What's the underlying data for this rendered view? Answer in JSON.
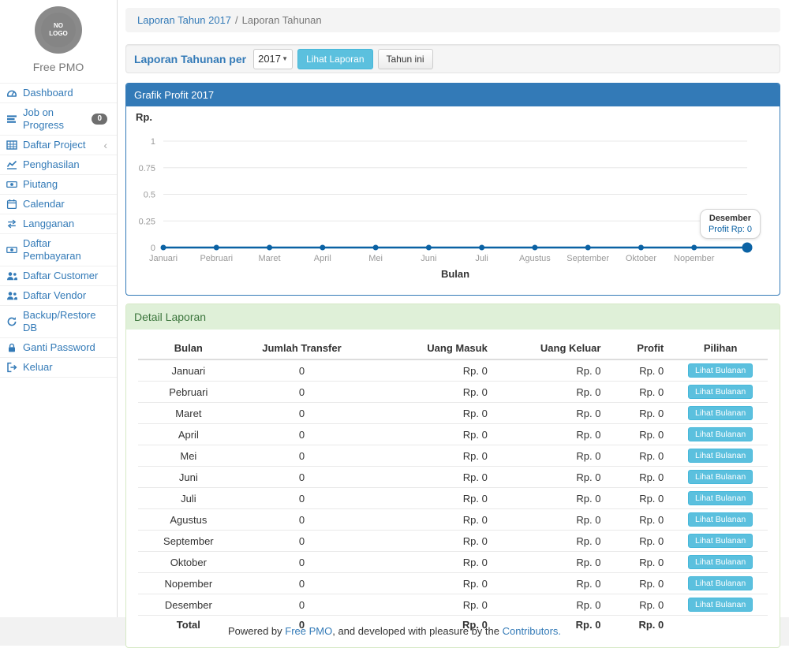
{
  "colors": {
    "accent_blue": "#337ab7",
    "chart_line": "#0b62a4",
    "info_button": "#5bc0de",
    "success_header_bg": "#dff0d8",
    "success_header_text": "#3c763d"
  },
  "sidebar": {
    "logo_text": "NO\nLOGO",
    "brand": "Free PMO",
    "items": [
      {
        "label": "Dashboard",
        "icon": "tachometer-icon"
      },
      {
        "label": "Job on Progress",
        "icon": "tasks-icon",
        "badge": "0"
      },
      {
        "label": "Daftar Project",
        "icon": "table-icon",
        "chevron": "‹"
      },
      {
        "label": "Penghasilan",
        "icon": "line-chart-icon"
      },
      {
        "label": "Piutang",
        "icon": "money-icon"
      },
      {
        "label": "Calendar",
        "icon": "calendar-icon"
      },
      {
        "label": "Langganan",
        "icon": "retweet-icon"
      },
      {
        "label": "Daftar Pembayaran",
        "icon": "money-icon"
      },
      {
        "label": "Daftar Customer",
        "icon": "users-icon"
      },
      {
        "label": "Daftar Vendor",
        "icon": "users-icon"
      },
      {
        "label": "Backup/Restore DB",
        "icon": "refresh-icon"
      },
      {
        "label": "Ganti Password",
        "icon": "lock-icon"
      },
      {
        "label": "Keluar",
        "icon": "sign-out-icon"
      }
    ]
  },
  "breadcrumb": {
    "link": "Laporan Tahun 2017",
    "separator": "/",
    "current": "Laporan Tahunan"
  },
  "filter": {
    "label": "Laporan Tahunan per",
    "year_value": "2017",
    "view_button": "Lihat Laporan",
    "this_year_button": "Tahun ini"
  },
  "chart_panel": {
    "title": "Grafik Profit 2017"
  },
  "chart_data": {
    "type": "line",
    "title": "Grafik Profit 2017",
    "x": [
      "Januari",
      "Pebruari",
      "Maret",
      "April",
      "Mei",
      "Juni",
      "Juli",
      "Agustus",
      "September",
      "Oktober",
      "Nopember",
      "Desember"
    ],
    "series": [
      {
        "name": "Profit",
        "values": [
          0,
          0,
          0,
          0,
          0,
          0,
          0,
          0,
          0,
          0,
          0,
          0
        ]
      }
    ],
    "xlabel": "Bulan",
    "ylabel": "Rp.",
    "yticks": [
      0,
      0.25,
      0.5,
      0.75,
      1
    ],
    "ylim": [
      0,
      1
    ],
    "grid": true,
    "line_color": "#0b62a4",
    "hidden_last_x_label": true,
    "tooltip": {
      "title": "Desember",
      "value": "Profit Rp: 0"
    }
  },
  "table_panel": {
    "title": "Detail Laporan",
    "columns": [
      "Bulan",
      "Jumlah Transfer",
      "Uang Masuk",
      "Uang Keluar",
      "Profit",
      "Pilihan"
    ],
    "action_label": "Lihat Bulanan",
    "rows": [
      {
        "bulan": "Januari",
        "jumlah_transfer": "0",
        "uang_masuk": "Rp. 0",
        "uang_keluar": "Rp. 0",
        "profit": "Rp. 0"
      },
      {
        "bulan": "Pebruari",
        "jumlah_transfer": "0",
        "uang_masuk": "Rp. 0",
        "uang_keluar": "Rp. 0",
        "profit": "Rp. 0"
      },
      {
        "bulan": "Maret",
        "jumlah_transfer": "0",
        "uang_masuk": "Rp. 0",
        "uang_keluar": "Rp. 0",
        "profit": "Rp. 0"
      },
      {
        "bulan": "April",
        "jumlah_transfer": "0",
        "uang_masuk": "Rp. 0",
        "uang_keluar": "Rp. 0",
        "profit": "Rp. 0"
      },
      {
        "bulan": "Mei",
        "jumlah_transfer": "0",
        "uang_masuk": "Rp. 0",
        "uang_keluar": "Rp. 0",
        "profit": "Rp. 0"
      },
      {
        "bulan": "Juni",
        "jumlah_transfer": "0",
        "uang_masuk": "Rp. 0",
        "uang_keluar": "Rp. 0",
        "profit": "Rp. 0"
      },
      {
        "bulan": "Juli",
        "jumlah_transfer": "0",
        "uang_masuk": "Rp. 0",
        "uang_keluar": "Rp. 0",
        "profit": "Rp. 0"
      },
      {
        "bulan": "Agustus",
        "jumlah_transfer": "0",
        "uang_masuk": "Rp. 0",
        "uang_keluar": "Rp. 0",
        "profit": "Rp. 0"
      },
      {
        "bulan": "September",
        "jumlah_transfer": "0",
        "uang_masuk": "Rp. 0",
        "uang_keluar": "Rp. 0",
        "profit": "Rp. 0"
      },
      {
        "bulan": "Oktober",
        "jumlah_transfer": "0",
        "uang_masuk": "Rp. 0",
        "uang_keluar": "Rp. 0",
        "profit": "Rp. 0"
      },
      {
        "bulan": "Nopember",
        "jumlah_transfer": "0",
        "uang_masuk": "Rp. 0",
        "uang_keluar": "Rp. 0",
        "profit": "Rp. 0"
      },
      {
        "bulan": "Desember",
        "jumlah_transfer": "0",
        "uang_masuk": "Rp. 0",
        "uang_keluar": "Rp. 0",
        "profit": "Rp. 0"
      }
    ],
    "total": {
      "bulan": "Total",
      "jumlah_transfer": "0",
      "uang_masuk": "Rp. 0",
      "uang_keluar": "Rp. 0",
      "profit": "Rp. 0"
    }
  },
  "footer": {
    "prefix": "Powered by ",
    "link1": "Free PMO",
    "middle": ", and developed with pleasure by the ",
    "link2": "Contributors."
  }
}
